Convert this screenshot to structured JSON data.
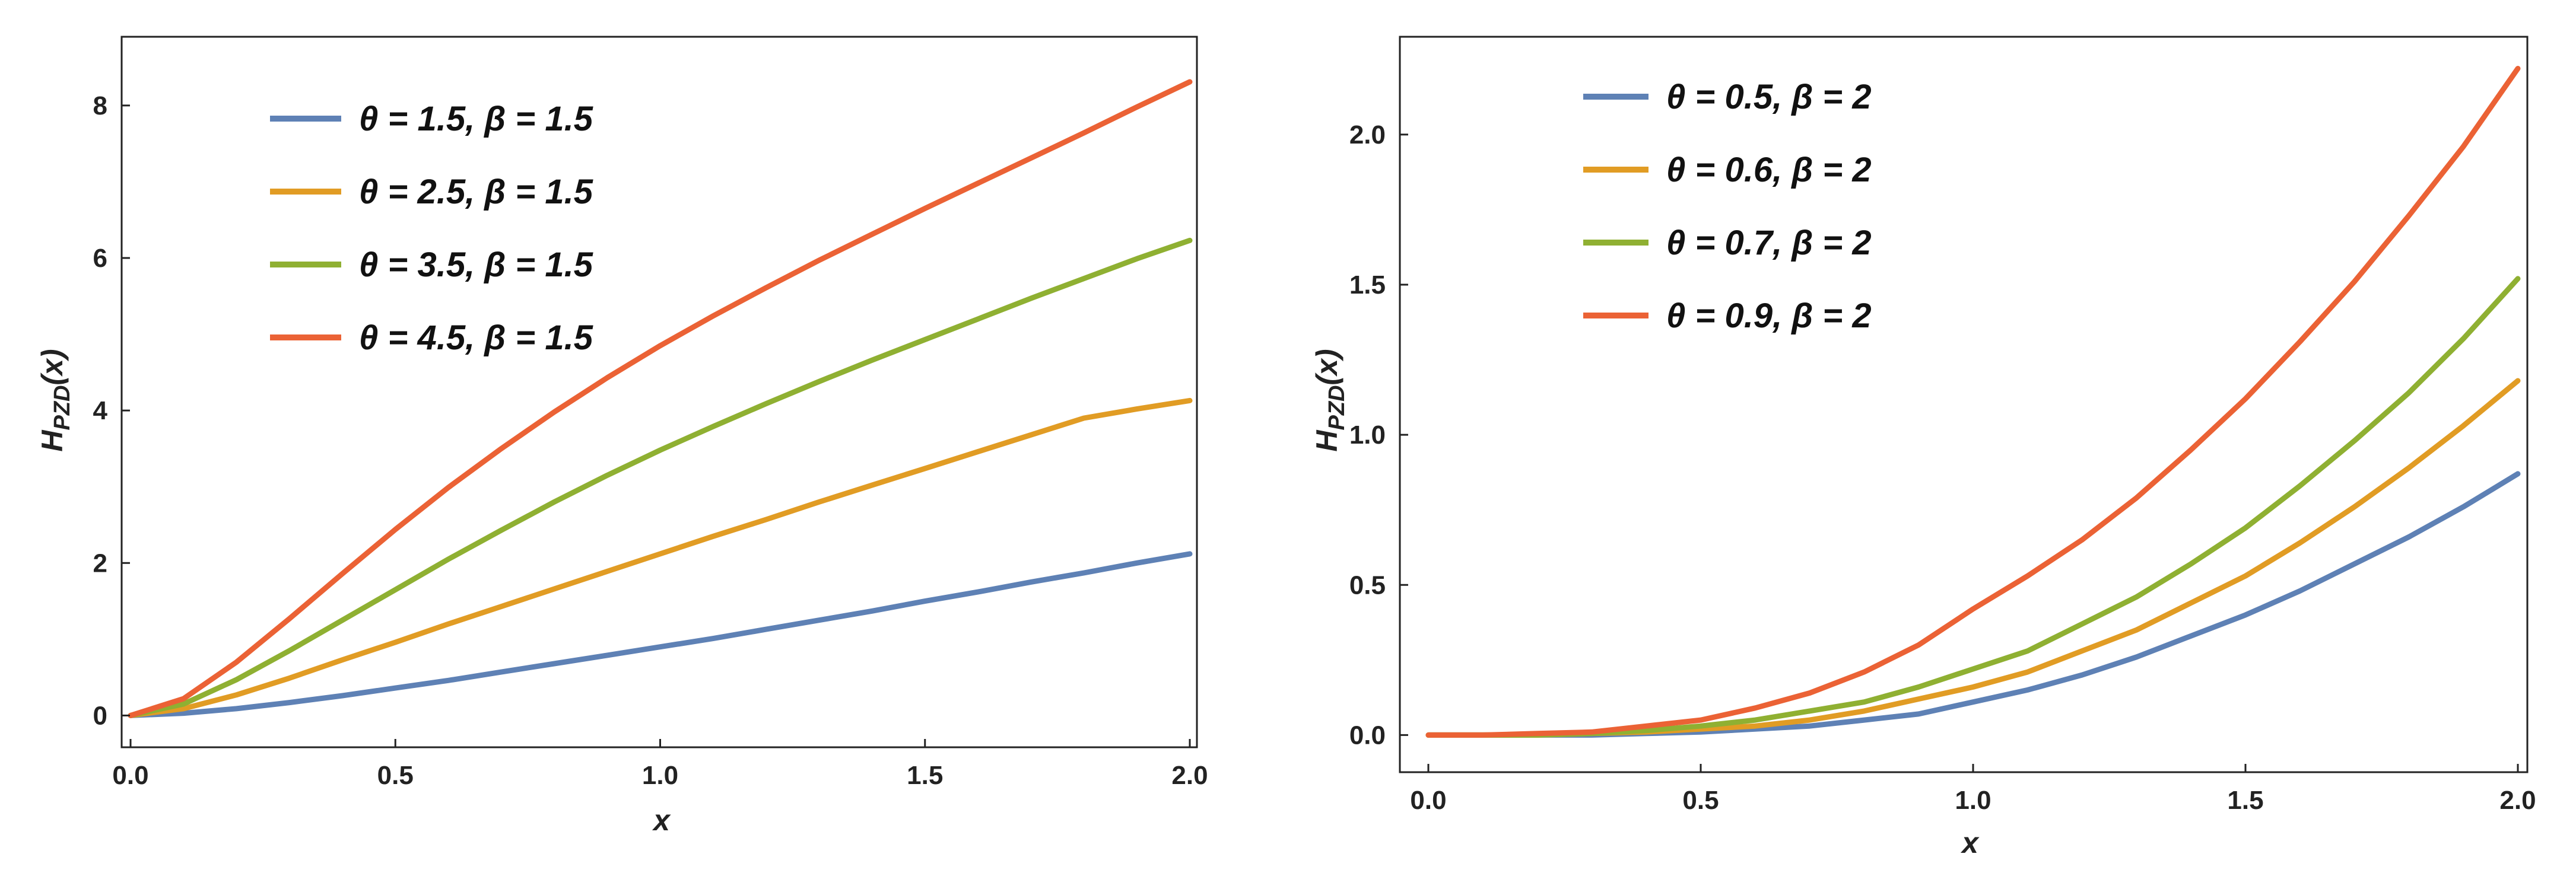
{
  "chart_data": [
    {
      "type": "line",
      "title": "",
      "xlabel": "x",
      "ylabel": "H_PZD(x)",
      "ylabel_main": "H",
      "ylabel_sub": "PZD",
      "ylabel_arg": "(x)",
      "xlim": [
        0,
        2
      ],
      "ylim": [
        -0.3,
        8.8
      ],
      "xticks": [
        "0.0",
        "0.5",
        "1.0",
        "1.5",
        "2.0"
      ],
      "xtick_values": [
        0,
        0.5,
        1.0,
        1.5,
        2.0
      ],
      "yticks": [
        "0",
        "2",
        "4",
        "6",
        "8"
      ],
      "ytick_values": [
        0,
        2,
        4,
        6,
        8
      ],
      "grid": false,
      "legend_position": "top-left",
      "x": [
        0.0,
        0.1,
        0.2,
        0.3,
        0.4,
        0.5,
        0.6,
        0.7,
        0.8,
        0.9,
        1.0,
        1.1,
        1.2,
        1.3,
        1.4,
        1.5,
        1.6,
        1.7,
        1.8,
        1.9,
        2.0
      ],
      "series": [
        {
          "name": "θ = 1.5, β = 1.5",
          "color": "#5e81b5",
          "values": [
            0.0,
            0.03,
            0.09,
            0.17,
            0.26,
            0.36,
            0.46,
            0.57,
            0.68,
            0.79,
            0.9,
            1.01,
            1.13,
            1.25,
            1.37,
            1.5,
            1.62,
            1.75,
            1.87,
            2.0,
            2.12
          ]
        },
        {
          "name": "θ = 2.5, β = 1.5",
          "color": "#e19c24",
          "values": [
            0.0,
            0.09,
            0.27,
            0.49,
            0.73,
            0.96,
            1.2,
            1.43,
            1.66,
            1.89,
            2.12,
            2.35,
            2.57,
            2.8,
            3.02,
            3.24,
            3.46,
            3.68,
            3.9,
            4.02,
            4.13
          ]
        },
        {
          "name": "θ = 3.5, β = 1.5",
          "color": "#8fb032",
          "values": [
            0.0,
            0.15,
            0.47,
            0.85,
            1.25,
            1.65,
            2.05,
            2.43,
            2.8,
            3.15,
            3.48,
            3.79,
            4.09,
            4.38,
            4.66,
            4.93,
            5.2,
            5.47,
            5.73,
            5.99,
            6.23
          ]
        },
        {
          "name": "θ = 4.5, β = 1.5",
          "color": "#eb6235",
          "values": [
            0.0,
            0.22,
            0.7,
            1.27,
            1.86,
            2.44,
            2.99,
            3.5,
            3.98,
            4.43,
            4.85,
            5.24,
            5.61,
            5.97,
            6.31,
            6.65,
            6.98,
            7.31,
            7.64,
            7.98,
            8.31
          ]
        }
      ]
    },
    {
      "type": "line",
      "title": "",
      "xlabel": "x",
      "ylabel": "H_PZD(x)",
      "ylabel_main": "H",
      "ylabel_sub": "PZD",
      "ylabel_arg": "(x)",
      "xlim": [
        0,
        2
      ],
      "ylim": [
        -0.1,
        2.3
      ],
      "xticks": [
        "0.0",
        "0.5",
        "1.0",
        "1.5",
        "2.0"
      ],
      "xtick_values": [
        0,
        0.5,
        1.0,
        1.5,
        2.0
      ],
      "yticks": [
        "0.0",
        "0.5",
        "1.0",
        "1.5",
        "2.0"
      ],
      "ytick_values": [
        0,
        0.5,
        1.0,
        1.5,
        2.0
      ],
      "grid": false,
      "legend_position": "top-left",
      "x": [
        0.0,
        0.1,
        0.2,
        0.3,
        0.4,
        0.5,
        0.6,
        0.7,
        0.8,
        0.9,
        1.0,
        1.1,
        1.2,
        1.3,
        1.4,
        1.5,
        1.6,
        1.7,
        1.8,
        1.9,
        2.0
      ],
      "series": [
        {
          "name": "θ = 0.5, β = 2",
          "color": "#5e81b5",
          "values": [
            0.0,
            0.0,
            0.0,
            0.0,
            0.005,
            0.01,
            0.02,
            0.03,
            0.05,
            0.07,
            0.11,
            0.15,
            0.2,
            0.26,
            0.33,
            0.4,
            0.48,
            0.57,
            0.66,
            0.76,
            0.87
          ]
        },
        {
          "name": "θ = 0.6, β = 2",
          "color": "#e19c24",
          "values": [
            0.0,
            0.0,
            0.0,
            0.005,
            0.01,
            0.02,
            0.03,
            0.05,
            0.08,
            0.12,
            0.16,
            0.21,
            0.28,
            0.35,
            0.44,
            0.53,
            0.64,
            0.76,
            0.89,
            1.03,
            1.18
          ]
        },
        {
          "name": "θ = 0.7, β = 2",
          "color": "#8fb032",
          "values": [
            0.0,
            0.0,
            0.0,
            0.005,
            0.015,
            0.03,
            0.05,
            0.08,
            0.11,
            0.16,
            0.22,
            0.28,
            0.37,
            0.46,
            0.57,
            0.69,
            0.83,
            0.98,
            1.14,
            1.32,
            1.52
          ]
        },
        {
          "name": "θ = 0.9, β = 2",
          "color": "#eb6235",
          "values": [
            0.0,
            0.0,
            0.005,
            0.01,
            0.03,
            0.05,
            0.09,
            0.14,
            0.21,
            0.3,
            0.42,
            0.53,
            0.65,
            0.79,
            0.95,
            1.12,
            1.31,
            1.51,
            1.73,
            1.96,
            2.22
          ]
        }
      ]
    }
  ]
}
